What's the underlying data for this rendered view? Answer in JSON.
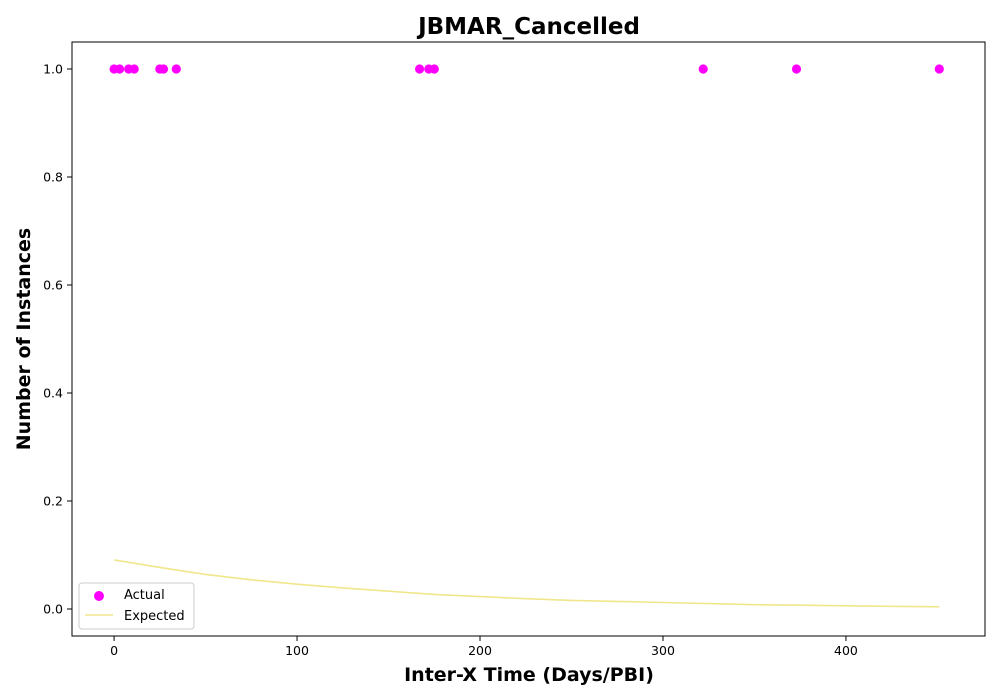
{
  "chart_data": {
    "type": "scatter",
    "title": "JBMAR_Cancelled",
    "xlabel": "Inter-X Time (Days/PBI)",
    "ylabel": "Number of Instances",
    "xlim": [
      -23,
      476
    ],
    "ylim": [
      -0.05,
      1.05
    ],
    "x_ticks": [
      0,
      100,
      200,
      300,
      400
    ],
    "y_ticks": [
      0.0,
      0.2,
      0.4,
      0.6,
      0.8,
      1.0
    ],
    "x_tick_labels": [
      "0",
      "100",
      "200",
      "300",
      "400"
    ],
    "y_tick_labels": [
      "0.0",
      "0.2",
      "0.4",
      "0.6",
      "0.8",
      "1.0"
    ],
    "grid": false,
    "legend": {
      "position": "bottom-left",
      "entries": [
        "Actual",
        "Expected"
      ]
    },
    "series": [
      {
        "name": "Actual",
        "kind": "scatter",
        "color": "#ff00ff",
        "x": [
          0,
          3,
          8,
          11,
          25,
          27,
          34,
          167,
          172,
          175,
          322,
          373,
          451
        ],
        "y": [
          1,
          1,
          1,
          1,
          1,
          1,
          1,
          1,
          1,
          1,
          1,
          1,
          1
        ]
      },
      {
        "name": "Expected",
        "kind": "line",
        "color": "#f0e68c",
        "x": [
          0,
          25,
          50,
          75,
          100,
          125,
          150,
          175,
          200,
          225,
          250,
          275,
          300,
          325,
          350,
          375,
          400,
          425,
          451
        ],
        "y": [
          0.091,
          0.077,
          0.064,
          0.054,
          0.046,
          0.039,
          0.033,
          0.027,
          0.023,
          0.019,
          0.016,
          0.014,
          0.012,
          0.01,
          0.008,
          0.007,
          0.006,
          0.005,
          0.004
        ]
      }
    ]
  }
}
